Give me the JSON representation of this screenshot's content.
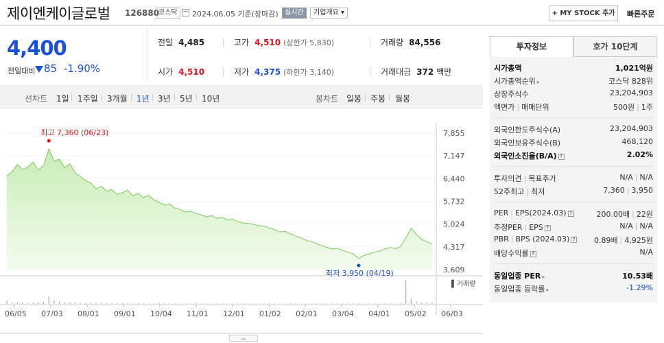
{
  "header": {
    "name": "제이엔케이글로벌",
    "code": "126880",
    "market": "코스닥",
    "date": "2024.06.05  기준(장마감)",
    "realtime": "실시간",
    "overview": "기업개요 ▾",
    "mystock": "+ MY STOCK 추가",
    "quick_order": "빠른주문"
  },
  "price": {
    "current": "4,400",
    "change_label": "전일대비",
    "change": "85",
    "change_pct": "-1.90%"
  },
  "quotes": {
    "prev_label": "전일",
    "prev": "4,485",
    "high_label": "고가",
    "high": "4,510",
    "upper_limit": "(상한가 5,830)",
    "volume_label": "거래량",
    "volume": "84,556",
    "open_label": "시가",
    "open": "4,510",
    "low_label": "저가",
    "low": "4,375",
    "lower_limit": "(하한가 3,140)",
    "amount_label": "거래대금",
    "amount": "372",
    "amount_unit": "백만"
  },
  "toolbar": {
    "line_chart": "선차트",
    "periods": [
      "1일",
      "1주일",
      "3개월",
      "1년",
      "3년",
      "5년",
      "10년"
    ],
    "active_period": "1년",
    "candle_chart": "봉차트",
    "candles": [
      "일봉",
      "주봉",
      "월봉"
    ]
  },
  "chart_data": {
    "type": "area",
    "y_ticks": [
      "7,855",
      "7,147",
      "6,440",
      "5,732",
      "5,024",
      "4,317",
      "3,609"
    ],
    "ylim": [
      3609,
      7855
    ],
    "x_ticks": [
      "06/05",
      "07/03",
      "08/01",
      "09/01",
      "10/04",
      "11/01",
      "12/01",
      "01/02",
      "02/01",
      "03/04",
      "04/01",
      "05/02",
      "06/03"
    ],
    "high_label": "최고 7,360 (06/23)",
    "low_label": "최저 3,950 (04/19)",
    "volume_label": "거래량",
    "values": [
      6520,
      6650,
      6880,
      6720,
      6800,
      6950,
      6700,
      6850,
      7360,
      6980,
      7050,
      6780,
      6900,
      6620,
      6500,
      6380,
      6300,
      6120,
      6200,
      6050,
      6100,
      5950,
      6000,
      6080,
      5900,
      5980,
      5850,
      5920,
      5780,
      5700,
      5620,
      5650,
      5520,
      5480,
      5400,
      5430,
      5350,
      5320,
      5250,
      5290,
      5200,
      5240,
      5150,
      5180,
      5100,
      5060,
      5050,
      5010,
      4980,
      4960,
      4900,
      4850,
      4780,
      4800,
      4720,
      4650,
      4600,
      4520,
      4480,
      4420,
      4350,
      4300,
      4250,
      4280,
      4200,
      4150,
      4100,
      3950,
      4050,
      4100,
      4150,
      4180,
      4250,
      4300,
      4260,
      4330,
      4600,
      4900,
      4700,
      4550,
      4480,
      4400
    ],
    "volumes": [
      12,
      6,
      8,
      5,
      4,
      6,
      5,
      9,
      30,
      14,
      10,
      7,
      6,
      5,
      4,
      4,
      3,
      5,
      4,
      3,
      3,
      4,
      3,
      3,
      3,
      3,
      3,
      2,
      3,
      3,
      2,
      2,
      3,
      2,
      2,
      2,
      3,
      2,
      2,
      2,
      2,
      2,
      2,
      3,
      2,
      2,
      2,
      2,
      2,
      2,
      2,
      2,
      2,
      2,
      3,
      2,
      2,
      2,
      2,
      2,
      2,
      2,
      2,
      2,
      2,
      2,
      2,
      3,
      2,
      2,
      2,
      2,
      2,
      3,
      2,
      3,
      95,
      20,
      10,
      6,
      5,
      5
    ]
  },
  "panel": {
    "tab_invest": "투자정보",
    "tab_quote": "호가 10단계",
    "rows": [
      {
        "k": "시가총액",
        "v": "1,021억원",
        "bold": true
      },
      {
        "k": "시가총액순위",
        "v": "코스닥 828위",
        "arrow": true
      },
      {
        "k": "상장주식수",
        "v": "23,204,903"
      },
      {
        "k": "액면가",
        "k2": "매매단위",
        "v": "500원",
        "v2": "1주"
      },
      {
        "k": "외국인한도주식수(A)",
        "v": "23,204,903"
      },
      {
        "k": "외국인보유주식수(B)",
        "v": "468,120"
      },
      {
        "k": "외국인소진율(B/A)",
        "v": "2.02%",
        "bold": true,
        "help": true
      },
      {
        "k": "투자의견",
        "k2": "목표주가",
        "v": "N/A",
        "v2": "N/A"
      },
      {
        "k": "52주최고",
        "k2": "최저",
        "v": "7,360",
        "v2": "3,950"
      },
      {
        "k": "PER",
        "k2": "EPS(2024.03)",
        "v": "200.00배",
        "v2": "22원",
        "help": true
      },
      {
        "k": "추정PER",
        "k2": "EPS",
        "v": "N/A",
        "v2": "N/A",
        "help": true
      },
      {
        "k": "PBR",
        "k2": "BPS (2024.03)",
        "v": "0.89배",
        "v2": "4,925원",
        "help": true
      },
      {
        "k": "배당수익률",
        "v": "N/A",
        "help": true
      },
      {
        "k": "동일업종 PER",
        "v": "10.53배",
        "bold": true,
        "arrow": true
      },
      {
        "k": "동일업종 등락률",
        "v": "-1.29%",
        "arrow": true,
        "blue": true
      }
    ]
  }
}
